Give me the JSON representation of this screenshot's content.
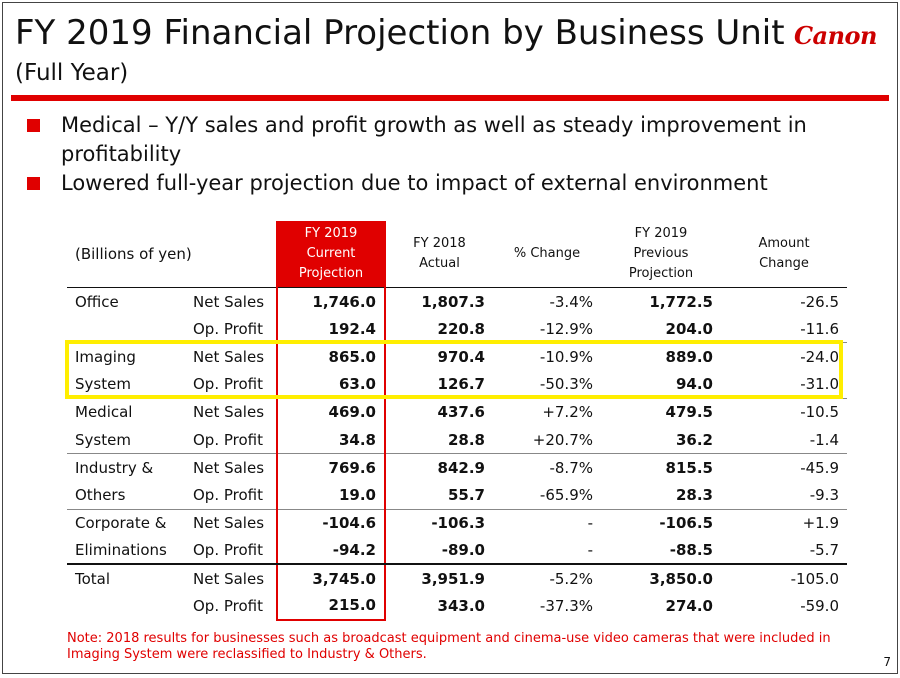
{
  "header": {
    "title": "FY 2019 Financial Projection by Business Unit",
    "subtitle": "(Full Year)",
    "logo_text": "Canon"
  },
  "bullets": [
    "Medical – Y/Y sales and profit growth as well as steady improvement in profitability",
    "Lowered full-year projection due to impact of external environment"
  ],
  "table": {
    "units_label": "(Billions of yen)",
    "columns": {
      "current": [
        "FY 2019",
        "Current",
        "Projection"
      ],
      "fy2018": [
        "FY 2018",
        "Actual"
      ],
      "pct": [
        "% Change"
      ],
      "previous": [
        "FY 2019",
        "Previous",
        "Projection"
      ],
      "amount": [
        "Amount",
        "Change"
      ]
    },
    "groups": [
      {
        "name_lines": [
          "Office",
          ""
        ],
        "rows": [
          {
            "metric": "Net Sales",
            "current": "1,746.0",
            "fy2018": "1,807.3",
            "pct": "-3.4%",
            "previous": "1,772.5",
            "amount": "-26.5"
          },
          {
            "metric": "Op. Profit",
            "current": "192.4",
            "fy2018": "220.8",
            "pct": "-12.9%",
            "previous": "204.0",
            "amount": "-11.6"
          }
        ]
      },
      {
        "name_lines": [
          "Imaging",
          "System"
        ],
        "rows": [
          {
            "metric": "Net Sales",
            "current": "865.0",
            "fy2018": "970.4",
            "pct": "-10.9%",
            "previous": "889.0",
            "amount": "-24.0"
          },
          {
            "metric": "Op. Profit",
            "current": "63.0",
            "fy2018": "126.7",
            "pct": "-50.3%",
            "previous": "94.0",
            "amount": "-31.0"
          }
        ]
      },
      {
        "name_lines": [
          "Medical",
          "System"
        ],
        "rows": [
          {
            "metric": "Net Sales",
            "current": "469.0",
            "fy2018": "437.6",
            "pct": "+7.2%",
            "previous": "479.5",
            "amount": "-10.5"
          },
          {
            "metric": "Op. Profit",
            "current": "34.8",
            "fy2018": "28.8",
            "pct": "+20.7%",
            "previous": "36.2",
            "amount": "-1.4"
          }
        ]
      },
      {
        "name_lines": [
          "Industry &",
          "Others"
        ],
        "rows": [
          {
            "metric": "Net Sales",
            "current": "769.6",
            "fy2018": "842.9",
            "pct": "-8.7%",
            "previous": "815.5",
            "amount": "-45.9"
          },
          {
            "metric": "Op. Profit",
            "current": "19.0",
            "fy2018": "55.7",
            "pct": "-65.9%",
            "previous": "28.3",
            "amount": "-9.3"
          }
        ]
      },
      {
        "name_lines": [
          "Corporate &",
          "Eliminations"
        ],
        "rows": [
          {
            "metric": "Net Sales",
            "current": "-104.6",
            "fy2018": "-106.3",
            "pct": "-",
            "previous": "-106.5",
            "amount": "+1.9"
          },
          {
            "metric": "Op. Profit",
            "current": "-94.2",
            "fy2018": "-89.0",
            "pct": "-",
            "previous": "-88.5",
            "amount": "-5.7"
          }
        ]
      },
      {
        "name_lines": [
          "Total",
          ""
        ],
        "rows": [
          {
            "metric": "Net Sales",
            "current": "3,745.0",
            "fy2018": "3,951.9",
            "pct": "-5.2%",
            "previous": "3,850.0",
            "amount": "-105.0"
          },
          {
            "metric": "Op. Profit",
            "current": "215.0",
            "fy2018": "343.0",
            "pct": "-37.3%",
            "previous": "274.0",
            "amount": "-59.0"
          }
        ]
      }
    ]
  },
  "note": "Note: 2018 results for businesses such as broadcast equipment and cinema-use video cameras that were included in Imaging System were reclassified to Industry & Others.",
  "page_number": "7",
  "colors": {
    "accent_red": "#e00000",
    "highlight_yellow": "#ffee00"
  }
}
